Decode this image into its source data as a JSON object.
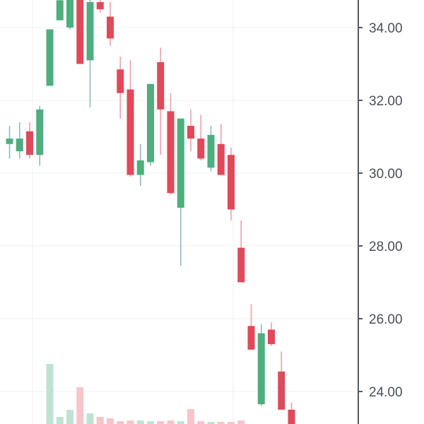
{
  "chart_data": {
    "type": "candlestick",
    "title": "",
    "xlabel": "",
    "ylabel": "",
    "ylim": [
      23.0,
      34.7
    ],
    "grid": true,
    "y_axis_position": "right",
    "y_ticks": [
      "34.00",
      "32.00",
      "30.00",
      "28.00",
      "26.00",
      "24.00"
    ],
    "y_tick_values": [
      34,
      32,
      30,
      28,
      26,
      24
    ],
    "colors": {
      "up": "#4caf7d",
      "down": "#e0495a",
      "up_volume": "#bfe3d0",
      "down_volume": "#f6c4c9",
      "grid": "#eef0f2",
      "axis": "#555a60",
      "text": "#4a4f55"
    },
    "candles": [
      {
        "open": 30.8,
        "high": 31.3,
        "low": 30.4,
        "close": 30.95
      },
      {
        "open": 30.6,
        "high": 31.4,
        "low": 30.4,
        "close": 30.95
      },
      {
        "open": 31.15,
        "high": 31.4,
        "low": 30.4,
        "close": 30.5
      },
      {
        "open": 30.5,
        "high": 31.85,
        "low": 30.2,
        "close": 31.75
      },
      {
        "open": 32.4,
        "high": 33.95,
        "low": 32.4,
        "close": 33.95
      },
      {
        "open": 34.2,
        "high": 34.8,
        "low": 34.2,
        "close": 34.75
      },
      {
        "open": 34.0,
        "high": 34.8,
        "low": 33.95,
        "close": 34.8
      },
      {
        "open": 34.8,
        "high": 34.8,
        "low": 33.0,
        "close": 33.0
      },
      {
        "open": 33.1,
        "high": 34.8,
        "low": 31.8,
        "close": 34.7
      },
      {
        "open": 34.7,
        "high": 34.8,
        "low": 34.4,
        "close": 34.5
      },
      {
        "open": 34.3,
        "high": 34.7,
        "low": 33.5,
        "close": 33.7
      },
      {
        "open": 32.85,
        "high": 33.2,
        "low": 31.5,
        "close": 32.2
      },
      {
        "open": 32.3,
        "high": 33.1,
        "low": 29.9,
        "close": 29.95
      },
      {
        "open": 29.95,
        "high": 30.8,
        "low": 29.65,
        "close": 30.35
      },
      {
        "open": 30.3,
        "high": 32.45,
        "low": 30.2,
        "close": 32.45
      },
      {
        "open": 33.05,
        "high": 33.45,
        "low": 30.5,
        "close": 31.75
      },
      {
        "open": 31.7,
        "high": 32.2,
        "low": 29.4,
        "close": 29.45
      },
      {
        "open": 29.05,
        "high": 31.5,
        "low": 27.45,
        "close": 31.5
      },
      {
        "open": 31.3,
        "high": 31.75,
        "low": 30.6,
        "close": 30.95
      },
      {
        "open": 30.95,
        "high": 31.6,
        "low": 30.35,
        "close": 30.4
      },
      {
        "open": 30.15,
        "high": 31.3,
        "low": 30.05,
        "close": 31.05
      },
      {
        "open": 30.8,
        "high": 31.35,
        "low": 29.95,
        "close": 29.95
      },
      {
        "open": 30.5,
        "high": 30.7,
        "low": 28.7,
        "close": 29.0
      },
      {
        "open": 27.95,
        "high": 28.7,
        "low": 27.0,
        "close": 27.0
      },
      {
        "open": 25.8,
        "high": 26.4,
        "low": 25.15,
        "close": 25.15
      },
      {
        "open": 23.65,
        "high": 25.85,
        "low": 23.6,
        "close": 25.6
      },
      {
        "open": 25.7,
        "high": 25.9,
        "low": 25.25,
        "close": 25.3
      },
      {
        "open": 24.55,
        "high": 25.1,
        "low": 23.5,
        "close": 23.5
      },
      {
        "open": 23.5,
        "high": 23.7,
        "low": 23.0,
        "close": 23.0
      }
    ],
    "volume_relative": [
      0,
      0,
      0,
      0,
      0.85,
      0.1,
      0.2,
      0.52,
      0.15,
      0.1,
      0.08,
      0.04,
      0.05,
      0.05,
      0.04,
      0.04,
      0.05,
      0.04,
      0.21,
      0.04,
      0.03,
      0.03,
      0.03,
      0.05,
      0.0,
      0.0,
      0.0,
      0.0,
      0.0
    ]
  }
}
